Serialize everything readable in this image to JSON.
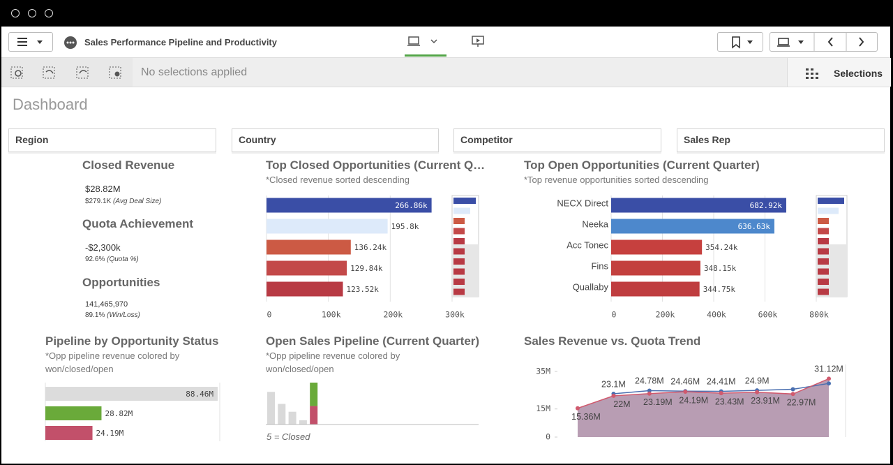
{
  "header": {
    "app_title": "Sales Performance Pipeline and Productivity"
  },
  "selection_bar": {
    "status": "No selections applied",
    "button": "Selections"
  },
  "sheet_title": "Dashboard",
  "filters": [
    "Region",
    "Country",
    "Competitor",
    "Sales Rep"
  ],
  "kpis": [
    {
      "label": "Closed Revenue",
      "value": "$28.82M",
      "detail": "$279.1K",
      "detail_note": "(Avg Deal Size)"
    },
    {
      "label": "Quota Achievement",
      "value": "-$2,300k",
      "detail": "92.6%",
      "detail_note": "(Quota %)"
    },
    {
      "label": "Opportunities",
      "value": "141,465,970",
      "detail": "89.1%",
      "detail_note": "(Win/Loss)"
    }
  ],
  "chart_data": [
    {
      "type": "bar",
      "orientation": "horizontal",
      "title": "Top Closed Opportunities (Current Q…",
      "subtitle": "*Closed revenue sorted descending",
      "categories": [
        null,
        null,
        null,
        null,
        null
      ],
      "values": [
        266860,
        195800,
        136240,
        129840,
        123520
      ],
      "value_labels": [
        "266.86k",
        "195.8k",
        "136.24k",
        "129.84k",
        "123.52k"
      ],
      "colors": [
        "#3a4ea6",
        "#ddeafa",
        "#cc5a44",
        "#c34949",
        "#b83a44"
      ],
      "xlim": [
        0,
        300000
      ],
      "xticks": [
        0,
        {
          "value": 100000,
          "label": "100k"
        },
        {
          "value": 200000,
          "label": "200k"
        },
        {
          "value": 300000,
          "label": "300k"
        }
      ],
      "grid": true
    },
    {
      "type": "bar",
      "orientation": "horizontal",
      "title": "Top Open Opportunities (Current Quarter)",
      "subtitle": "*Top revenue opportunities sorted descending",
      "categories": [
        "NECX Direct",
        "Neeka",
        "Acc Tonec",
        "Fins",
        "Quallaby"
      ],
      "values": [
        682920,
        636630,
        354240,
        348150,
        344750
      ],
      "value_labels": [
        "682.92k",
        "636.63k",
        "354.24k",
        "348.15k",
        "344.75k"
      ],
      "colors": [
        "#3a4ea6",
        "#4d88cc",
        "#c6403e",
        "#c3403e",
        "#bf3d3f"
      ],
      "xlim": [
        0,
        800000
      ],
      "xticks": [
        0,
        {
          "value": 200000,
          "label": "200k"
        },
        {
          "value": 400000,
          "label": "400k"
        },
        {
          "value": 600000,
          "label": "600k"
        },
        {
          "value": 800000,
          "label": "800k"
        }
      ],
      "grid": true
    },
    {
      "type": "bar",
      "orientation": "horizontal",
      "title": "Pipeline by Opportunity Status",
      "subtitle": "*Opp pipeline revenue colored by won/closed/open",
      "categories": [
        null,
        null,
        null
      ],
      "values": [
        88460000,
        28820000,
        24190000
      ],
      "value_labels": [
        "88.46M",
        "28.82M",
        "24.19M"
      ],
      "colors": [
        "#dcdcdc",
        "#6aaa3a",
        "#c2506a"
      ]
    },
    {
      "type": "bar",
      "orientation": "vertical",
      "stacked": true,
      "title": "Open Sales Pipeline (Current Quarter)",
      "subtitle": "*Opp pipeline revenue colored by won/closed/open",
      "annotation": "5 = Closed",
      "categories": [
        null,
        null,
        null,
        null,
        null
      ],
      "series": [
        {
          "color": "#d9d9d9",
          "values": [
            46,
            29,
            18,
            6,
            null
          ]
        },
        {
          "color": "#c2506a",
          "values": [
            null,
            null,
            null,
            null,
            26
          ]
        },
        {
          "color": "#6aaa3a",
          "values": [
            null,
            null,
            null,
            null,
            33
          ]
        }
      ]
    },
    {
      "type": "line",
      "title": "Sales Revenue vs. Quota Trend",
      "categories": [
        null,
        null,
        null,
        null,
        null,
        null,
        null,
        null
      ],
      "ylim": [
        0,
        35000000
      ],
      "yticks": [
        0,
        {
          "value": 15000000,
          "label": "15M"
        },
        {
          "value": 35000000,
          "label": "35M"
        }
      ],
      "series": [
        {
          "color": "#4a6fb0",
          "values": [
            null,
            23100000,
            24780000,
            24460000,
            24410000,
            24900000,
            25500000,
            28600000
          ],
          "value_labels": [
            null,
            "23.1M",
            "24.78M",
            "24.46M",
            "24.41M",
            "24.9M",
            null,
            null
          ]
        },
        {
          "color": "#d05a6e",
          "area": "#ab8ca6",
          "values": [
            15360000,
            22000000,
            23190000,
            24190000,
            23430000,
            23910000,
            22970000,
            31120000
          ],
          "value_labels": [
            "15.36M",
            "22M",
            "23.19M",
            "24.19M",
            "23.43M",
            "23.91M",
            "22.97M",
            "31.12M"
          ]
        }
      ]
    }
  ]
}
